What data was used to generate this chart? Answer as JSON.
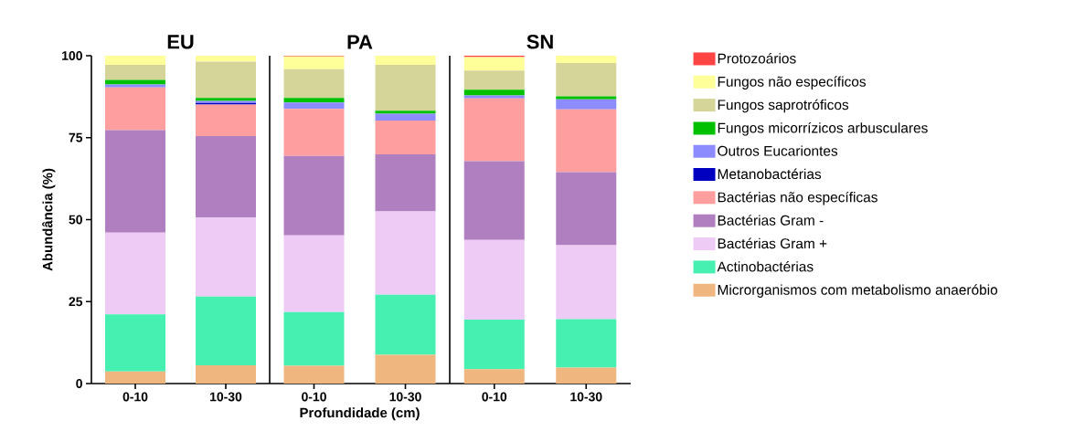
{
  "chart_data": [
    {
      "type": "bar",
      "stacked": true,
      "title": "EU",
      "ylabel": "Abundância (%)",
      "categories": [
        "0-10",
        "10-30"
      ],
      "ylim": [
        0,
        100
      ],
      "yticks": [
        0,
        25,
        50,
        75,
        100
      ],
      "series": [
        {
          "color": "#f0b67f",
          "values": [
            3.7,
            5.6
          ]
        },
        {
          "color": "#45f0b0",
          "values": [
            17.4,
            20.9
          ]
        },
        {
          "color": "#edcbf5",
          "values": [
            24.9,
            24.1
          ]
        },
        {
          "color": "#b07fc0",
          "values": [
            31.3,
            24.9
          ]
        },
        {
          "color": "#ff9e9e",
          "values": [
            13.0,
            9.6
          ]
        },
        {
          "color": "#0000c0",
          "values": [
            0,
            0.5
          ]
        },
        {
          "color": "#8c8cff",
          "values": [
            0.9,
            0.6
          ]
        },
        {
          "color": "#00c000",
          "values": [
            1.4,
            0.9
          ]
        },
        {
          "color": "#d5d59a",
          "values": [
            4.6,
            11.1
          ]
        },
        {
          "color": "#ffff99",
          "values": [
            2.8,
            1.8
          ]
        },
        {
          "color": "#ff4444",
          "values": [
            0,
            0
          ]
        }
      ]
    },
    {
      "type": "bar",
      "stacked": true,
      "title": "PA",
      "xlabel": "Profundidade (cm)",
      "categories": [
        "0-10",
        "10-30"
      ],
      "ylim": [
        0,
        100
      ],
      "tick_labels": "x",
      "series": [
        {
          "color": "#f0b67f",
          "values": [
            5.4,
            8.8
          ]
        },
        {
          "color": "#45f0b0",
          "values": [
            16.4,
            18.3
          ]
        },
        {
          "color": "#edcbf5",
          "values": [
            23.4,
            25.4
          ]
        },
        {
          "color": "#b07fc0",
          "values": [
            24.2,
            17.4
          ]
        },
        {
          "color": "#ff9e9e",
          "values": [
            14.4,
            10.3
          ]
        },
        {
          "color": "#0000c0",
          "values": [
            0,
            0
          ]
        },
        {
          "color": "#8c8cff",
          "values": [
            1.9,
            2.1
          ]
        },
        {
          "color": "#00c000",
          "values": [
            1.4,
            0.9
          ]
        },
        {
          "color": "#d5d59a",
          "values": [
            8.8,
            14.0
          ]
        },
        {
          "color": "#ffff99",
          "values": [
            3.9,
            2.8
          ]
        },
        {
          "color": "#ff4444",
          "values": [
            0.4,
            0
          ]
        }
      ]
    },
    {
      "type": "bar",
      "stacked": true,
      "title": "SN",
      "categories": [
        "0-10",
        "10-30"
      ],
      "ylim": [
        0,
        100
      ],
      "tick_labels": "x",
      "legend": "right",
      "series": [
        {
          "name": "Microrganismos com metabolismo anaeróbio",
          "color": "#f0b67f",
          "values": [
            4.4,
            4.9
          ]
        },
        {
          "name": "Actinobactérias",
          "color": "#45f0b0",
          "values": [
            15.1,
            14.7
          ]
        },
        {
          "name": "Bactérias Gram +",
          "color": "#edcbf5",
          "values": [
            24.3,
            22.6
          ]
        },
        {
          "name": "Bactérias Gram -",
          "color": "#b07fc0",
          "values": [
            24.0,
            22.3
          ]
        },
        {
          "name": "Bactérias não específicas",
          "color": "#ff9e9e",
          "values": [
            19.2,
            19.1
          ]
        },
        {
          "name": "Metanobactérias",
          "color": "#0000c0",
          "values": [
            0,
            0
          ]
        },
        {
          "name": "Outros Eucariontes",
          "color": "#8c8cff",
          "values": [
            0.9,
            3.1
          ]
        },
        {
          "name": "Fungos micorrízicos arbusculares",
          "color": "#00c000",
          "values": [
            1.7,
            0.9
          ]
        },
        {
          "name": "Fungos saprotróficos",
          "color": "#d5d59a",
          "values": [
            5.9,
            10.2
          ]
        },
        {
          "name": "Fungos não específicos",
          "color": "#ffff99",
          "values": [
            4.1,
            2.3
          ]
        },
        {
          "name": "Protozoários",
          "color": "#ff4444",
          "values": [
            0.6,
            0
          ]
        }
      ]
    }
  ]
}
